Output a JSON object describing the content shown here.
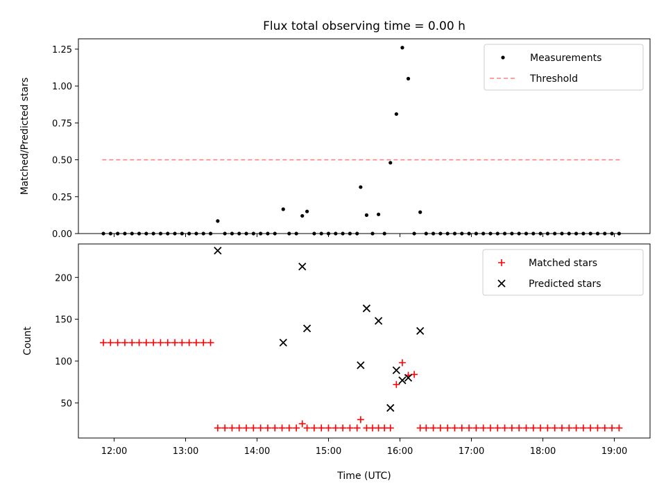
{
  "chart_data": [
    {
      "type": "scatter",
      "title": "Flux total observing time = 0.00 h",
      "xlabel": "",
      "ylabel": "Matched/Predicted stars",
      "xlim": [
        "11:30",
        "19:30"
      ],
      "ylim": [
        0,
        1.32
      ],
      "yticks": [
        "0.00",
        "0.25",
        "0.50",
        "0.75",
        "1.00",
        "1.25"
      ],
      "legend_position": "top-right",
      "threshold": {
        "name": "Threshold",
        "y": 0.5,
        "x_range": [
          "11:50",
          "19:07"
        ],
        "color": "#ff8080"
      },
      "series": [
        {
          "name": "Measurements",
          "color": "#000000",
          "points": [
            [
              "11:51",
              0
            ],
            [
              "11:57",
              0
            ],
            [
              "12:03",
              0
            ],
            [
              "12:09",
              0
            ],
            [
              "12:15",
              0
            ],
            [
              "12:21",
              0
            ],
            [
              "12:27",
              0
            ],
            [
              "12:33",
              0
            ],
            [
              "12:39",
              0
            ],
            [
              "12:45",
              0
            ],
            [
              "12:51",
              0
            ],
            [
              "12:57",
              0
            ],
            [
              "13:03",
              0
            ],
            [
              "13:09",
              0
            ],
            [
              "13:15",
              0
            ],
            [
              "13:21",
              0
            ],
            [
              "13:27",
              0.085
            ],
            [
              "13:33",
              0
            ],
            [
              "13:39",
              0
            ],
            [
              "13:45",
              0
            ],
            [
              "13:51",
              0
            ],
            [
              "13:57",
              0
            ],
            [
              "14:03",
              0
            ],
            [
              "14:09",
              0
            ],
            [
              "14:15",
              0
            ],
            [
              "14:22",
              0.165
            ],
            [
              "14:27",
              0
            ],
            [
              "14:33",
              0
            ],
            [
              "14:38",
              0.12
            ],
            [
              "14:42",
              0.15
            ],
            [
              "14:48",
              0
            ],
            [
              "14:54",
              0
            ],
            [
              "15:00",
              0
            ],
            [
              "15:06",
              0
            ],
            [
              "15:12",
              0
            ],
            [
              "15:18",
              0
            ],
            [
              "15:24",
              0
            ],
            [
              "15:27",
              0.315
            ],
            [
              "15:32",
              0.125
            ],
            [
              "15:37",
              0
            ],
            [
              "15:42",
              0.13
            ],
            [
              "15:47",
              0
            ],
            [
              "15:52",
              0.48
            ],
            [
              "15:57",
              0.81
            ],
            [
              "16:02",
              1.26
            ],
            [
              "16:07",
              1.05
            ],
            [
              "16:12",
              0
            ],
            [
              "16:17",
              0.145
            ],
            [
              "16:22",
              0
            ],
            [
              "16:28",
              0
            ],
            [
              "16:34",
              0
            ],
            [
              "16:40",
              0
            ],
            [
              "16:46",
              0
            ],
            [
              "16:52",
              0
            ],
            [
              "16:58",
              0
            ],
            [
              "17:04",
              0
            ],
            [
              "17:10",
              0
            ],
            [
              "17:16",
              0
            ],
            [
              "17:22",
              0
            ],
            [
              "17:28",
              0
            ],
            [
              "17:34",
              0
            ],
            [
              "17:40",
              0
            ],
            [
              "17:46",
              0
            ],
            [
              "17:52",
              0
            ],
            [
              "17:58",
              0
            ],
            [
              "18:04",
              0
            ],
            [
              "18:10",
              0
            ],
            [
              "18:16",
              0
            ],
            [
              "18:22",
              0
            ],
            [
              "18:28",
              0
            ],
            [
              "18:34",
              0
            ],
            [
              "18:40",
              0
            ],
            [
              "18:46",
              0
            ],
            [
              "18:52",
              0
            ],
            [
              "18:58",
              0
            ],
            [
              "19:04",
              0
            ]
          ]
        }
      ]
    },
    {
      "type": "scatter",
      "title": "",
      "xlabel": "Time (UTC)",
      "ylabel": "Count",
      "xlim": [
        "11:30",
        "19:30"
      ],
      "ylim": [
        8,
        240
      ],
      "yticks": [
        "50",
        "100",
        "150",
        "200"
      ],
      "xticks": [
        "12:00",
        "13:00",
        "14:00",
        "15:00",
        "16:00",
        "17:00",
        "18:00",
        "19:00"
      ],
      "legend_position": "top-right",
      "series": [
        {
          "name": "Matched stars",
          "marker": "plus",
          "color": "#ff0000",
          "points": [
            [
              "11:51",
              122
            ],
            [
              "11:57",
              122
            ],
            [
              "12:03",
              122
            ],
            [
              "12:09",
              122
            ],
            [
              "12:15",
              122
            ],
            [
              "12:21",
              122
            ],
            [
              "12:27",
              122
            ],
            [
              "12:33",
              122
            ],
            [
              "12:39",
              122
            ],
            [
              "12:45",
              122
            ],
            [
              "12:51",
              122
            ],
            [
              "12:57",
              122
            ],
            [
              "13:03",
              122
            ],
            [
              "13:09",
              122
            ],
            [
              "13:15",
              122
            ],
            [
              "13:21",
              122
            ],
            [
              "13:27",
              20
            ],
            [
              "13:33",
              20
            ],
            [
              "13:39",
              20
            ],
            [
              "13:45",
              20
            ],
            [
              "13:51",
              20
            ],
            [
              "13:57",
              20
            ],
            [
              "14:03",
              20
            ],
            [
              "14:09",
              20
            ],
            [
              "14:15",
              20
            ],
            [
              "14:21",
              20
            ],
            [
              "14:27",
              20
            ],
            [
              "14:33",
              20
            ],
            [
              "14:38",
              25
            ],
            [
              "14:42",
              20
            ],
            [
              "14:48",
              20
            ],
            [
              "14:54",
              20
            ],
            [
              "15:00",
              20
            ],
            [
              "15:06",
              20
            ],
            [
              "15:12",
              20
            ],
            [
              "15:18",
              20
            ],
            [
              "15:24",
              20
            ],
            [
              "15:27",
              30
            ],
            [
              "15:32",
              20
            ],
            [
              "15:37",
              20
            ],
            [
              "15:42",
              20
            ],
            [
              "15:47",
              20
            ],
            [
              "15:52",
              20
            ],
            [
              "15:57",
              72
            ],
            [
              "16:02",
              98
            ],
            [
              "16:07",
              83
            ],
            [
              "16:12",
              84
            ],
            [
              "16:17",
              20
            ],
            [
              "16:22",
              20
            ],
            [
              "16:28",
              20
            ],
            [
              "16:34",
              20
            ],
            [
              "16:40",
              20
            ],
            [
              "16:46",
              20
            ],
            [
              "16:52",
              20
            ],
            [
              "16:58",
              20
            ],
            [
              "17:04",
              20
            ],
            [
              "17:10",
              20
            ],
            [
              "17:16",
              20
            ],
            [
              "17:22",
              20
            ],
            [
              "17:28",
              20
            ],
            [
              "17:34",
              20
            ],
            [
              "17:40",
              20
            ],
            [
              "17:46",
              20
            ],
            [
              "17:52",
              20
            ],
            [
              "17:58",
              20
            ],
            [
              "18:04",
              20
            ],
            [
              "18:10",
              20
            ],
            [
              "18:16",
              20
            ],
            [
              "18:22",
              20
            ],
            [
              "18:28",
              20
            ],
            [
              "18:34",
              20
            ],
            [
              "18:40",
              20
            ],
            [
              "18:46",
              20
            ],
            [
              "18:52",
              20
            ],
            [
              "18:58",
              20
            ],
            [
              "19:04",
              20
            ]
          ]
        },
        {
          "name": "Predicted stars",
          "marker": "x",
          "color": "#000000",
          "points": [
            [
              "13:27",
              232
            ],
            [
              "14:22",
              122
            ],
            [
              "14:38",
              213
            ],
            [
              "14:42",
              139
            ],
            [
              "15:27",
              95
            ],
            [
              "15:32",
              163
            ],
            [
              "15:42",
              148
            ],
            [
              "15:52",
              44
            ],
            [
              "15:57",
              89
            ],
            [
              "16:02",
              77
            ],
            [
              "16:07",
              80
            ],
            [
              "16:17",
              136
            ]
          ]
        }
      ]
    }
  ]
}
